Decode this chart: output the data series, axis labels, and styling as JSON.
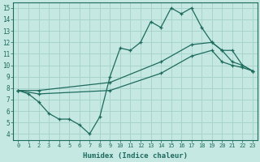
{
  "xlabel": "Humidex (Indice chaleur)",
  "x_ticks": [
    0,
    1,
    2,
    3,
    4,
    5,
    6,
    7,
    8,
    9,
    10,
    11,
    12,
    13,
    14,
    15,
    16,
    17,
    18,
    19,
    20,
    21,
    22,
    23
  ],
  "xlim": [
    -0.5,
    23.5
  ],
  "ylim": [
    3.5,
    15.5
  ],
  "y_ticks": [
    4,
    5,
    6,
    7,
    8,
    9,
    10,
    11,
    12,
    13,
    14,
    15
  ],
  "bg_color": "#c5e8e2",
  "grid_color": "#a8d4cc",
  "line_color": "#1e6b5e",
  "line1_x": [
    0,
    1,
    2,
    3,
    4,
    5,
    6,
    7,
    8,
    9,
    10,
    11,
    12,
    13,
    14,
    15,
    16,
    17,
    18,
    19,
    20,
    21,
    22,
    23
  ],
  "line1_y": [
    7.8,
    7.5,
    6.8,
    5.8,
    5.3,
    5.3,
    4.8,
    4.0,
    5.5,
    9.0,
    11.5,
    11.3,
    12.0,
    13.8,
    13.3,
    15.0,
    14.5,
    15.0,
    13.3,
    12.0,
    11.3,
    10.3,
    10.0,
    9.5
  ],
  "line2_x": [
    0,
    2,
    9,
    14,
    17,
    19,
    20,
    21,
    22,
    23
  ],
  "line2_y": [
    7.8,
    7.8,
    8.5,
    10.3,
    11.8,
    12.0,
    11.3,
    11.3,
    10.0,
    9.5
  ],
  "line3_x": [
    0,
    2,
    9,
    14,
    17,
    19,
    20,
    21,
    22,
    23
  ],
  "line3_y": [
    7.8,
    7.5,
    7.8,
    9.3,
    10.8,
    11.3,
    10.3,
    10.0,
    9.8,
    9.5
  ]
}
